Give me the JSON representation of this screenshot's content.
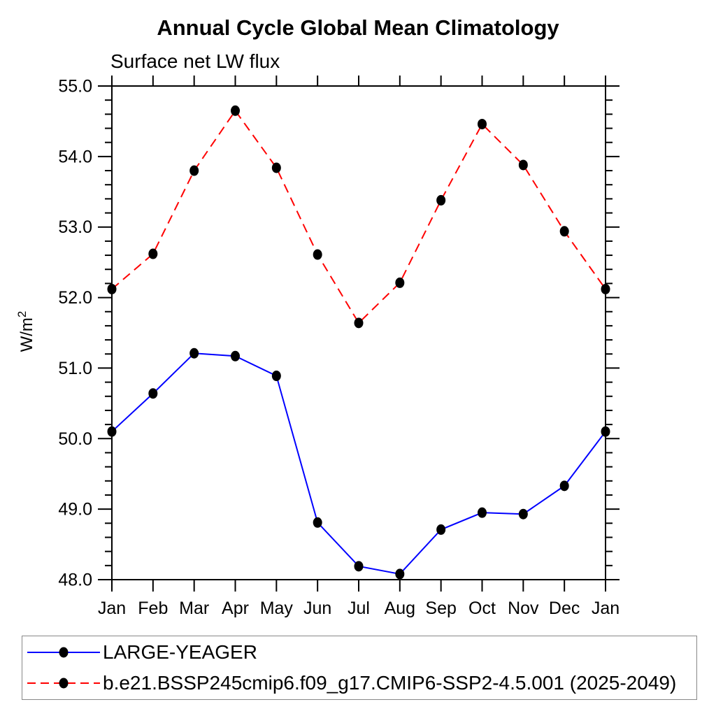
{
  "chart_data": {
    "type": "line",
    "title": "Annual Cycle Global Mean Climatology",
    "subtitle": "Surface net LW flux",
    "ylabel_base": "W/m",
    "ylabel_exp": "2",
    "categories": [
      "Jan",
      "Feb",
      "Mar",
      "Apr",
      "May",
      "Jun",
      "Jul",
      "Aug",
      "Sep",
      "Oct",
      "Nov",
      "Dec",
      "Jan"
    ],
    "ylim": [
      48.0,
      55.0
    ],
    "ytick_major": 1.0,
    "ytick_minor": 0.2,
    "ytick_labels": [
      "48.0",
      "49.0",
      "50.0",
      "51.0",
      "52.0",
      "53.0",
      "54.0",
      "55.0"
    ],
    "grid": false,
    "legend_position": "bottom",
    "marker_color": "#000000",
    "axis_color": "#000000",
    "series": [
      {
        "name": "LARGE-YEAGER",
        "color": "#0000ff",
        "line_style": "solid",
        "marker": "filled-circle",
        "values": [
          50.1,
          50.64,
          51.21,
          51.17,
          50.89,
          48.81,
          48.19,
          48.08,
          48.71,
          48.95,
          48.93,
          49.33,
          50.1
        ]
      },
      {
        "name": "b.e21.BSSP245cmip6.f09_g17.CMIP6-SSP2-4.5.001 (2025-2049)",
        "color": "#ff0000",
        "line_style": "dashed",
        "marker": "filled-circle",
        "values": [
          52.12,
          52.62,
          53.8,
          54.65,
          53.84,
          52.61,
          51.64,
          52.21,
          53.38,
          54.46,
          53.88,
          52.94,
          52.12
        ]
      }
    ]
  }
}
